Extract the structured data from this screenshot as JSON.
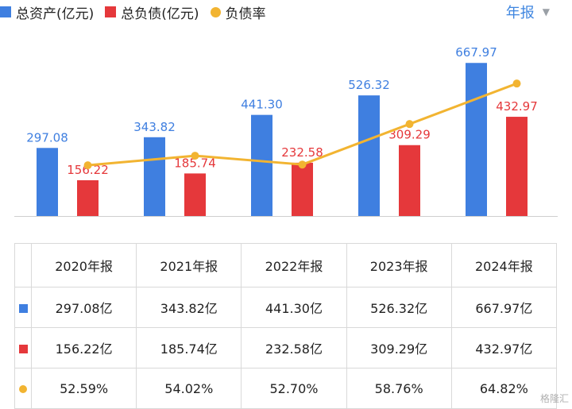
{
  "legend": {
    "assets_label": "总资产(亿元)",
    "liabilities_label": "总负债(亿元)",
    "ratio_label": "负债率"
  },
  "period_selector": {
    "label": "年报",
    "icon": "caret-down-icon"
  },
  "colors": {
    "assets": "#3f7fe0",
    "liabilities": "#e5383b",
    "ratio": "#f2b431"
  },
  "chart_data": {
    "type": "bar",
    "categories": [
      "2020年报",
      "2021年报",
      "2022年报",
      "2023年报",
      "2024年报"
    ],
    "series": [
      {
        "name": "总资产(亿元)",
        "type": "bar",
        "values": [
          297.08,
          343.82,
          441.3,
          526.32,
          667.97
        ],
        "labels": [
          "297.08",
          "343.82",
          "441.30",
          "526.32",
          "667.97"
        ]
      },
      {
        "name": "总负债(亿元)",
        "type": "bar",
        "values": [
          156.22,
          185.74,
          232.58,
          309.29,
          432.97
        ],
        "labels": [
          "156.22",
          "185.74",
          "232.58",
          "309.29",
          "432.97"
        ]
      },
      {
        "name": "负债率",
        "type": "line",
        "values": [
          52.59,
          54.02,
          52.7,
          58.76,
          64.82
        ],
        "unit": "%"
      }
    ],
    "ylim": [
      0,
      700
    ],
    "grid": false,
    "legend_position": "top-left"
  },
  "table": {
    "headers": [
      "2020年报",
      "2021年报",
      "2022年报",
      "2023年报",
      "2024年报"
    ],
    "rows": [
      {
        "marker": "assets",
        "cells": [
          "297.08亿",
          "343.82亿",
          "441.30亿",
          "526.32亿",
          "667.97亿"
        ]
      },
      {
        "marker": "liabilities",
        "cells": [
          "156.22亿",
          "185.74亿",
          "232.58亿",
          "309.29亿",
          "432.97亿"
        ]
      },
      {
        "marker": "ratio",
        "cells": [
          "52.59%",
          "54.02%",
          "52.70%",
          "58.76%",
          "64.82%"
        ]
      }
    ]
  },
  "watermark": {
    "text": "格隆汇"
  }
}
